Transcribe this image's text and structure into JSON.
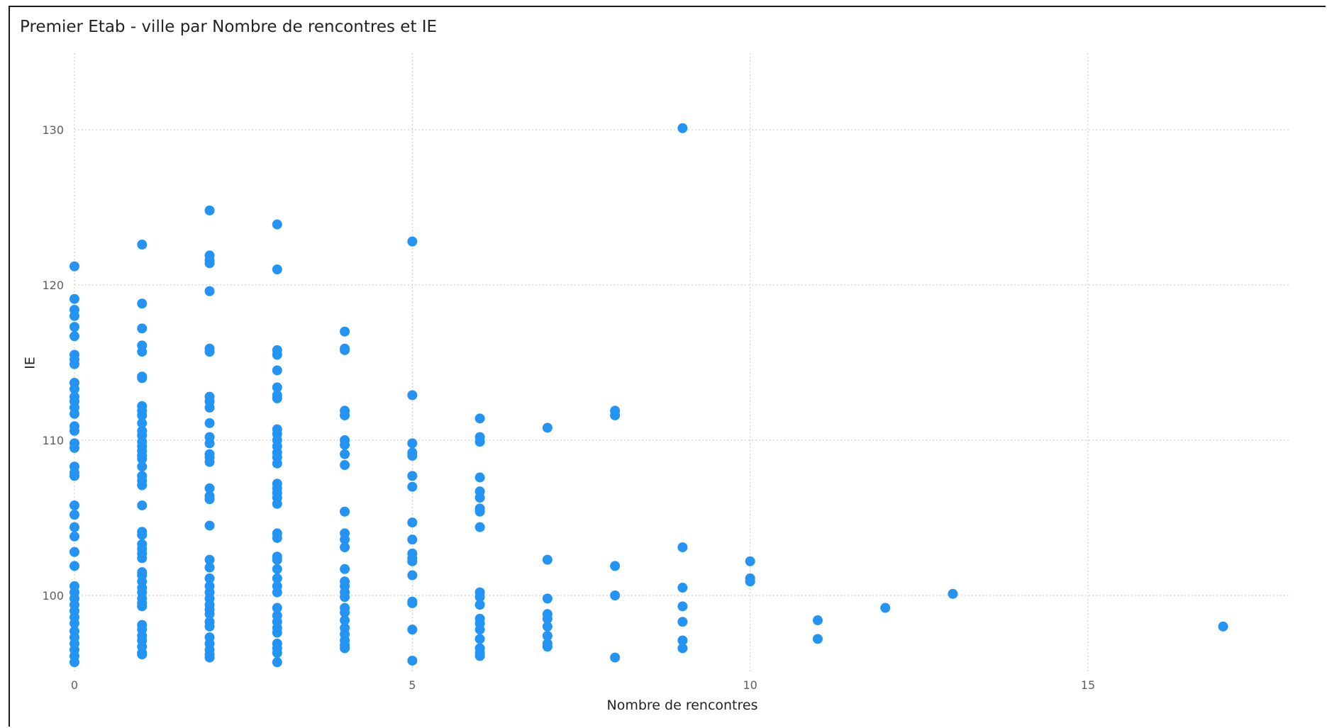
{
  "visual": {
    "title": "Premier Etab - ville par Nombre de rencontres et IE"
  },
  "colors": {
    "marker": "#2394f4",
    "grid": "#c8c6c4",
    "tick_text": "#605e5c",
    "title_text": "#252423",
    "frame": "#1a1a1a"
  },
  "chart_data": {
    "type": "scatter",
    "title": "Premier Etab - ville par Nombre de rencontres et IE",
    "xlabel": "Nombre de rencontres",
    "ylabel": "IE",
    "xlim": [
      0,
      18
    ],
    "ylim": [
      95,
      135
    ],
    "x_ticks": [
      0,
      5,
      10,
      15
    ],
    "y_ticks": [
      100,
      110,
      120,
      130
    ],
    "grid": true,
    "series": [
      {
        "points": [
          [
            0,
            121.2
          ],
          [
            0,
            119.1
          ],
          [
            0,
            118.4
          ],
          [
            0,
            118.0
          ],
          [
            0,
            117.3
          ],
          [
            0,
            116.7
          ],
          [
            0,
            115.5
          ],
          [
            0,
            115.2
          ],
          [
            0,
            114.9
          ],
          [
            0,
            113.7
          ],
          [
            0,
            113.3
          ],
          [
            0,
            112.8
          ],
          [
            0,
            112.5
          ],
          [
            0,
            112.1
          ],
          [
            0,
            111.7
          ],
          [
            0,
            110.9
          ],
          [
            0,
            110.6
          ],
          [
            0,
            109.8
          ],
          [
            0,
            109.5
          ],
          [
            0,
            108.3
          ],
          [
            0,
            107.9
          ],
          [
            0,
            107.7
          ],
          [
            0,
            105.8
          ],
          [
            0,
            105.2
          ],
          [
            0,
            104.4
          ],
          [
            0,
            103.8
          ],
          [
            0,
            102.8
          ],
          [
            0,
            101.9
          ],
          [
            0,
            100.6
          ],
          [
            0,
            100.2
          ],
          [
            0,
            99.8
          ],
          [
            0,
            99.4
          ],
          [
            0,
            99.0
          ],
          [
            0,
            98.6
          ],
          [
            0,
            98.2
          ],
          [
            0,
            97.7
          ],
          [
            0,
            97.3
          ],
          [
            0,
            96.9
          ],
          [
            0,
            96.5
          ],
          [
            0,
            96.1
          ],
          [
            0,
            95.7
          ],
          [
            1,
            122.6
          ],
          [
            1,
            118.8
          ],
          [
            1,
            117.2
          ],
          [
            1,
            116.1
          ],
          [
            1,
            115.7
          ],
          [
            1,
            114.1
          ],
          [
            1,
            114.0
          ],
          [
            1,
            112.2
          ],
          [
            1,
            111.9
          ],
          [
            1,
            111.6
          ],
          [
            1,
            111.1
          ],
          [
            1,
            110.6
          ],
          [
            1,
            110.3
          ],
          [
            1,
            109.9
          ],
          [
            1,
            109.6
          ],
          [
            1,
            109.3
          ],
          [
            1,
            109.0
          ],
          [
            1,
            108.8
          ],
          [
            1,
            108.3
          ],
          [
            1,
            107.7
          ],
          [
            1,
            107.4
          ],
          [
            1,
            107.1
          ],
          [
            1,
            105.8
          ],
          [
            1,
            104.1
          ],
          [
            1,
            103.9
          ],
          [
            1,
            103.3
          ],
          [
            1,
            103.0
          ],
          [
            1,
            102.7
          ],
          [
            1,
            102.4
          ],
          [
            1,
            101.5
          ],
          [
            1,
            101.3
          ],
          [
            1,
            100.9
          ],
          [
            1,
            100.5
          ],
          [
            1,
            100.2
          ],
          [
            1,
            99.8
          ],
          [
            1,
            99.5
          ],
          [
            1,
            99.3
          ],
          [
            1,
            98.1
          ],
          [
            1,
            97.8
          ],
          [
            1,
            97.4
          ],
          [
            1,
            97.1
          ],
          [
            1,
            96.7
          ],
          [
            1,
            96.3
          ],
          [
            1,
            96.2
          ],
          [
            2,
            124.8
          ],
          [
            2,
            121.9
          ],
          [
            2,
            121.6
          ],
          [
            2,
            121.4
          ],
          [
            2,
            119.6
          ],
          [
            2,
            115.9
          ],
          [
            2,
            115.7
          ],
          [
            2,
            112.8
          ],
          [
            2,
            112.5
          ],
          [
            2,
            112.1
          ],
          [
            2,
            111.1
          ],
          [
            2,
            110.2
          ],
          [
            2,
            109.8
          ],
          [
            2,
            109.1
          ],
          [
            2,
            108.9
          ],
          [
            2,
            108.6
          ],
          [
            2,
            106.9
          ],
          [
            2,
            106.4
          ],
          [
            2,
            106.2
          ],
          [
            2,
            104.5
          ],
          [
            2,
            102.3
          ],
          [
            2,
            101.8
          ],
          [
            2,
            101.1
          ],
          [
            2,
            100.6
          ],
          [
            2,
            100.2
          ],
          [
            2,
            99.8
          ],
          [
            2,
            99.4
          ],
          [
            2,
            99.1
          ],
          [
            2,
            98.8
          ],
          [
            2,
            98.3
          ],
          [
            2,
            98.0
          ],
          [
            2,
            97.3
          ],
          [
            2,
            96.9
          ],
          [
            2,
            96.5
          ],
          [
            2,
            96.2
          ],
          [
            2,
            96.0
          ],
          [
            3,
            123.9
          ],
          [
            3,
            121.0
          ],
          [
            3,
            115.8
          ],
          [
            3,
            115.5
          ],
          [
            3,
            114.5
          ],
          [
            3,
            113.4
          ],
          [
            3,
            112.9
          ],
          [
            3,
            112.7
          ],
          [
            3,
            110.7
          ],
          [
            3,
            110.4
          ],
          [
            3,
            110.0
          ],
          [
            3,
            109.6
          ],
          [
            3,
            109.2
          ],
          [
            3,
            108.9
          ],
          [
            3,
            108.5
          ],
          [
            3,
            107.2
          ],
          [
            3,
            106.9
          ],
          [
            3,
            106.6
          ],
          [
            3,
            106.3
          ],
          [
            3,
            105.9
          ],
          [
            3,
            104.0
          ],
          [
            3,
            103.7
          ],
          [
            3,
            102.5
          ],
          [
            3,
            102.3
          ],
          [
            3,
            101.7
          ],
          [
            3,
            101.1
          ],
          [
            3,
            100.6
          ],
          [
            3,
            100.2
          ],
          [
            3,
            99.2
          ],
          [
            3,
            98.7
          ],
          [
            3,
            98.3
          ],
          [
            3,
            97.9
          ],
          [
            3,
            97.6
          ],
          [
            3,
            96.9
          ],
          [
            3,
            96.6
          ],
          [
            3,
            96.3
          ],
          [
            3,
            95.7
          ],
          [
            4,
            117.0
          ],
          [
            4,
            115.9
          ],
          [
            4,
            115.8
          ],
          [
            4,
            111.9
          ],
          [
            4,
            111.6
          ],
          [
            4,
            110.0
          ],
          [
            4,
            109.7
          ],
          [
            4,
            109.1
          ],
          [
            4,
            108.4
          ],
          [
            4,
            105.4
          ],
          [
            4,
            104.0
          ],
          [
            4,
            103.6
          ],
          [
            4,
            103.1
          ],
          [
            4,
            101.7
          ],
          [
            4,
            100.9
          ],
          [
            4,
            100.6
          ],
          [
            4,
            100.2
          ],
          [
            4,
            99.9
          ],
          [
            4,
            99.2
          ],
          [
            4,
            98.9
          ],
          [
            4,
            98.4
          ],
          [
            4,
            97.9
          ],
          [
            4,
            97.5
          ],
          [
            4,
            97.1
          ],
          [
            4,
            96.8
          ],
          [
            4,
            96.6
          ],
          [
            5,
            122.8
          ],
          [
            5,
            112.9
          ],
          [
            5,
            109.8
          ],
          [
            5,
            109.2
          ],
          [
            5,
            109.0
          ],
          [
            5,
            107.7
          ],
          [
            5,
            107.0
          ],
          [
            5,
            104.7
          ],
          [
            5,
            103.6
          ],
          [
            5,
            102.7
          ],
          [
            5,
            102.4
          ],
          [
            5,
            102.2
          ],
          [
            5,
            101.3
          ],
          [
            5,
            99.6
          ],
          [
            5,
            99.5
          ],
          [
            5,
            97.8
          ],
          [
            5,
            95.8
          ],
          [
            6,
            111.4
          ],
          [
            6,
            110.2
          ],
          [
            6,
            109.9
          ],
          [
            6,
            107.6
          ],
          [
            6,
            106.7
          ],
          [
            6,
            106.3
          ],
          [
            6,
            105.6
          ],
          [
            6,
            105.4
          ],
          [
            6,
            104.4
          ],
          [
            6,
            100.2
          ],
          [
            6,
            99.9
          ],
          [
            6,
            99.4
          ],
          [
            6,
            98.5
          ],
          [
            6,
            98.2
          ],
          [
            6,
            97.8
          ],
          [
            6,
            97.2
          ],
          [
            6,
            96.6
          ],
          [
            6,
            96.3
          ],
          [
            6,
            96.1
          ],
          [
            7,
            110.8
          ],
          [
            7,
            102.3
          ],
          [
            7,
            99.8
          ],
          [
            7,
            98.8
          ],
          [
            7,
            98.5
          ],
          [
            7,
            98.0
          ],
          [
            7,
            97.4
          ],
          [
            7,
            96.9
          ],
          [
            7,
            96.7
          ],
          [
            8,
            111.9
          ],
          [
            8,
            111.6
          ],
          [
            8,
            101.9
          ],
          [
            8,
            100.0
          ],
          [
            8,
            96.0
          ],
          [
            9,
            130.1
          ],
          [
            9,
            103.1
          ],
          [
            9,
            100.5
          ],
          [
            9,
            99.3
          ],
          [
            9,
            98.3
          ],
          [
            9,
            97.1
          ],
          [
            9,
            96.6
          ],
          [
            10,
            102.2
          ],
          [
            10,
            101.1
          ],
          [
            10,
            100.9
          ],
          [
            11,
            98.4
          ],
          [
            11,
            97.2
          ],
          [
            12,
            99.2
          ],
          [
            13,
            100.1
          ],
          [
            17,
            98.0
          ]
        ]
      }
    ]
  }
}
